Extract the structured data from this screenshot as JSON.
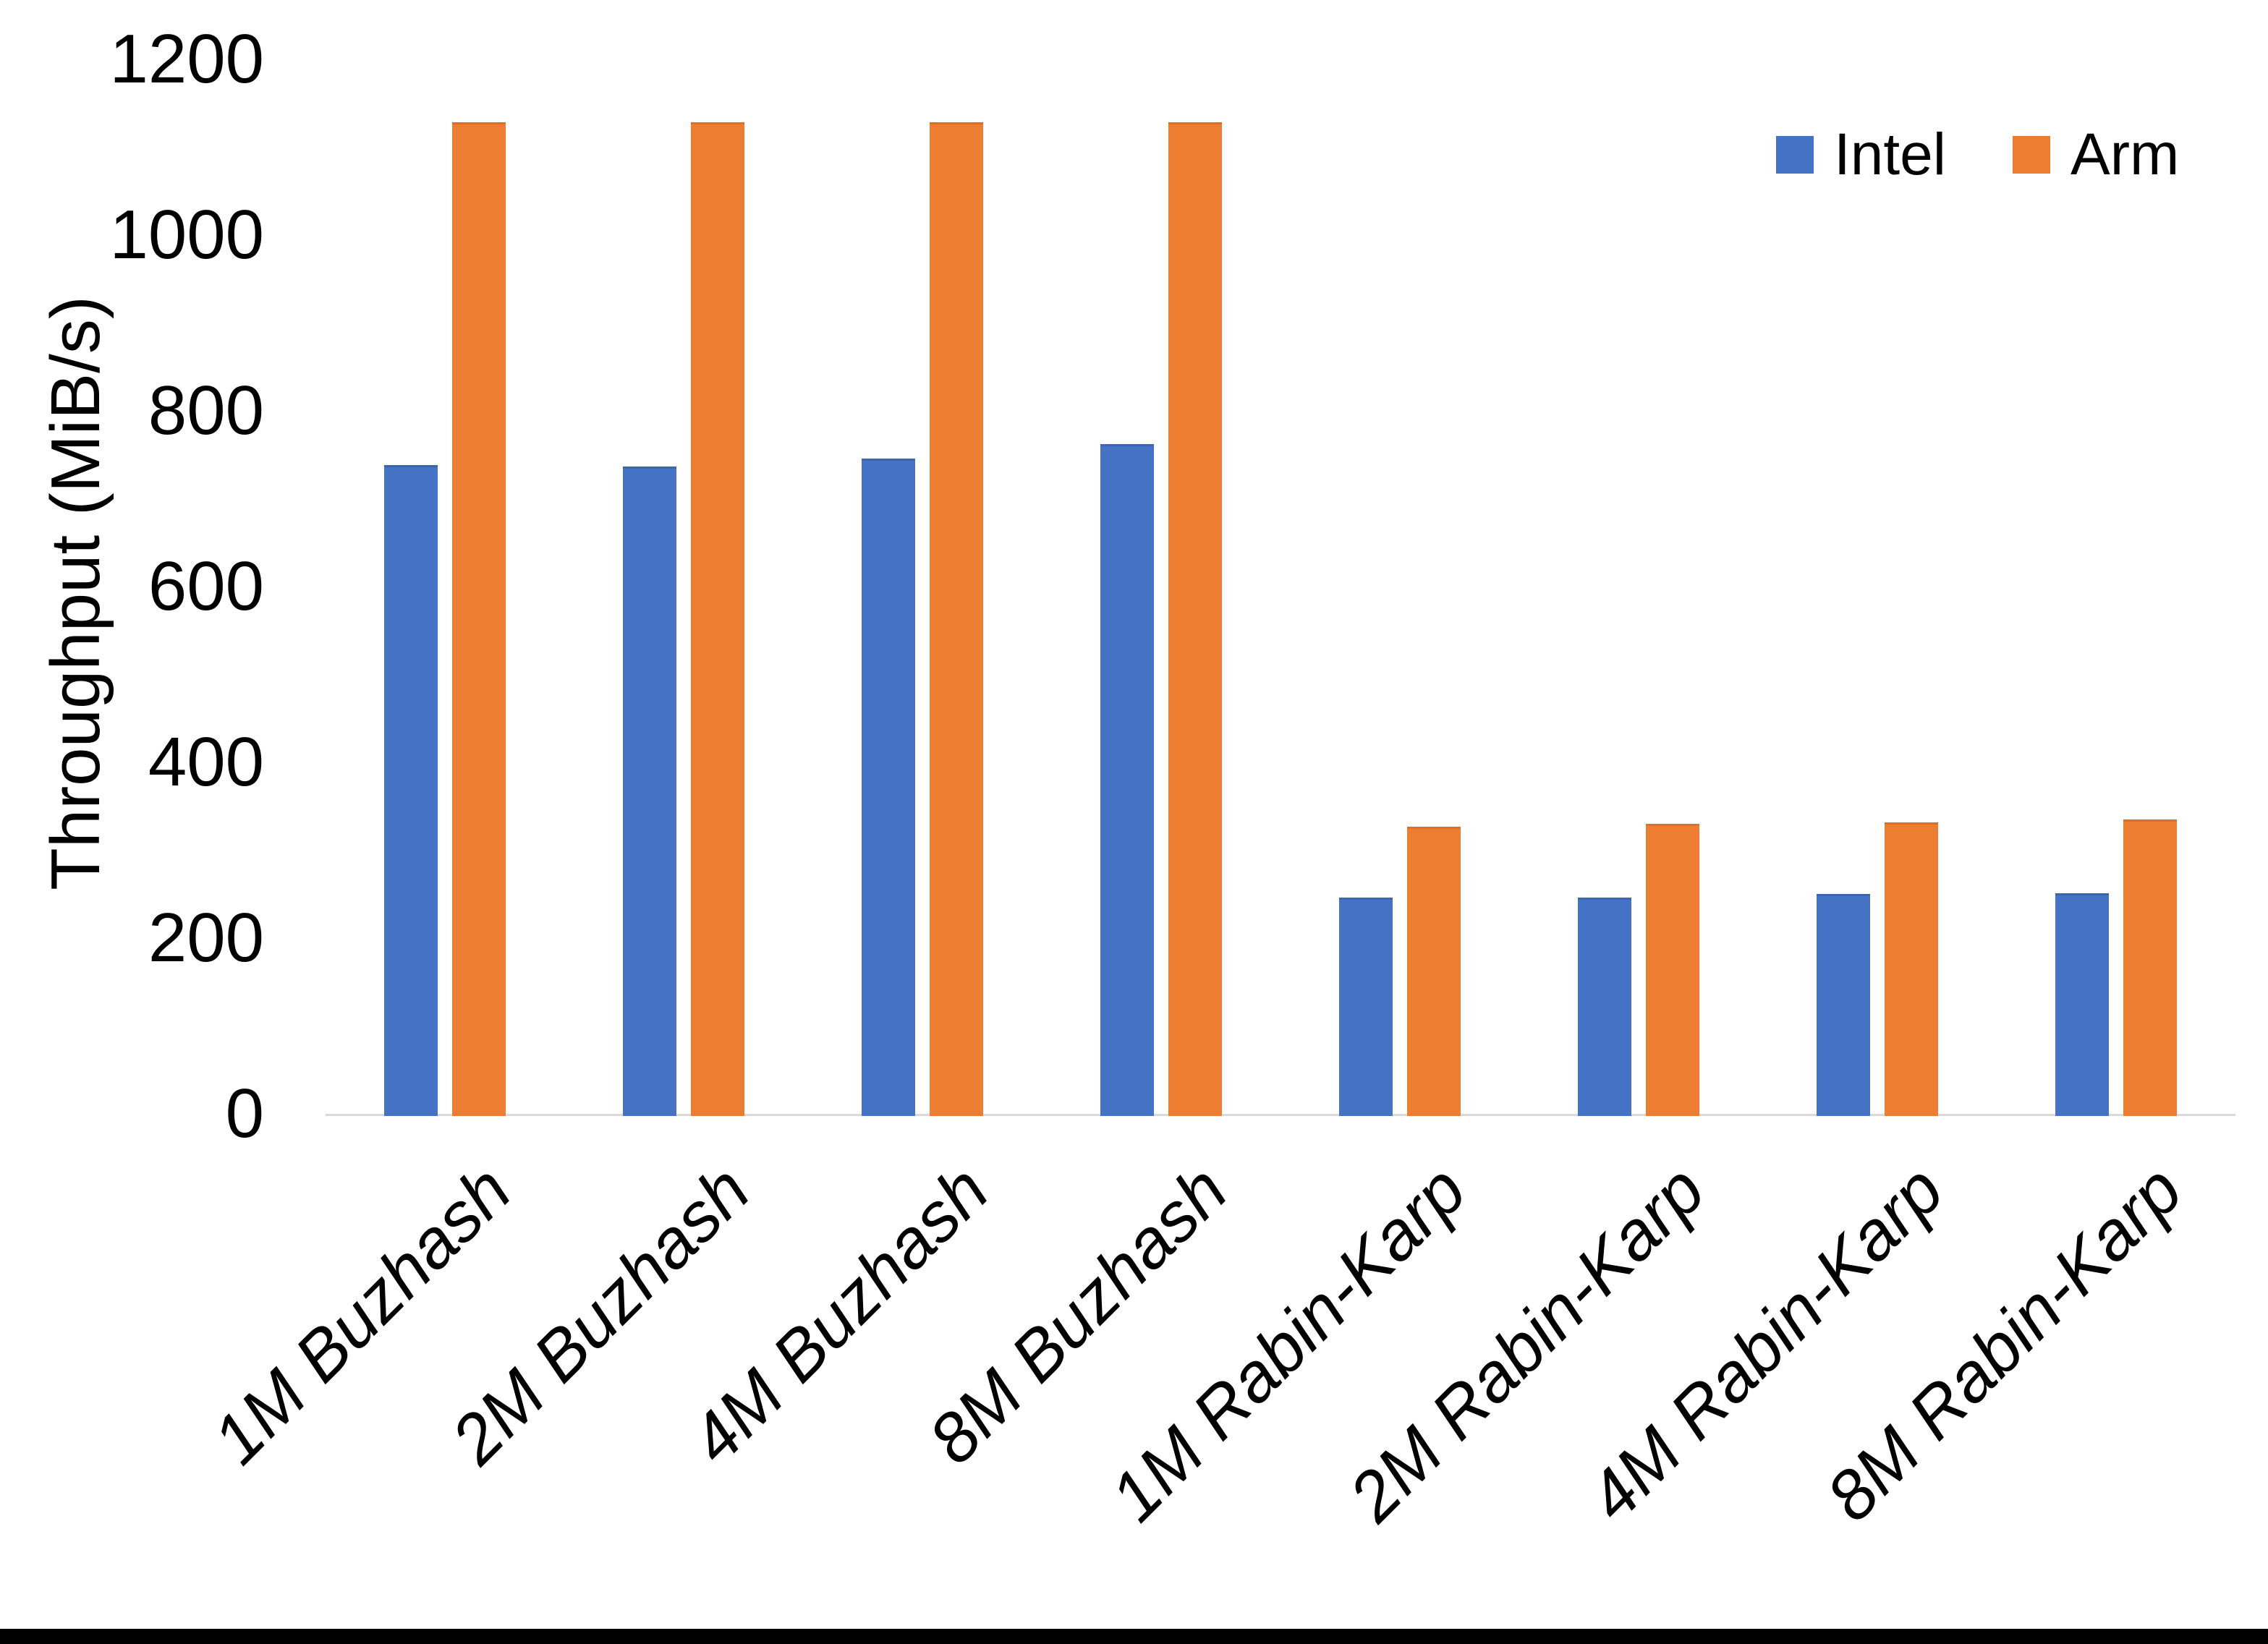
{
  "chart_data": {
    "type": "bar",
    "title": "",
    "xlabel": "",
    "ylabel": "Throughput (MiB/s)",
    "categories": [
      "1M Buzhash",
      "2M Buzhash",
      "4M Buzhash",
      "8M Buzhash",
      "1M Rabin-Karp",
      "2M Rabin-Karp",
      "4M Rabin-Karp",
      "8M Rabin-Karp"
    ],
    "series": [
      {
        "name": "Intel",
        "color": "#4472C4",
        "values": [
          738,
          737,
          746,
          762,
          246,
          246,
          250,
          251
        ]
      },
      {
        "name": "Arm",
        "color": "#ED7D31",
        "values": [
          1128,
          1128,
          1128,
          1128,
          327,
          330,
          332,
          335
        ]
      }
    ],
    "ylim": [
      0,
      1200
    ],
    "y_ticks": [
      0,
      200,
      400,
      600,
      800,
      1000,
      1200
    ],
    "grid": "off",
    "legend_position": "top-right",
    "axis_line_color": "#d9d9d9",
    "text_color": "#000000",
    "background_color": "#ffffff",
    "bottom_border_color": "#000000"
  }
}
